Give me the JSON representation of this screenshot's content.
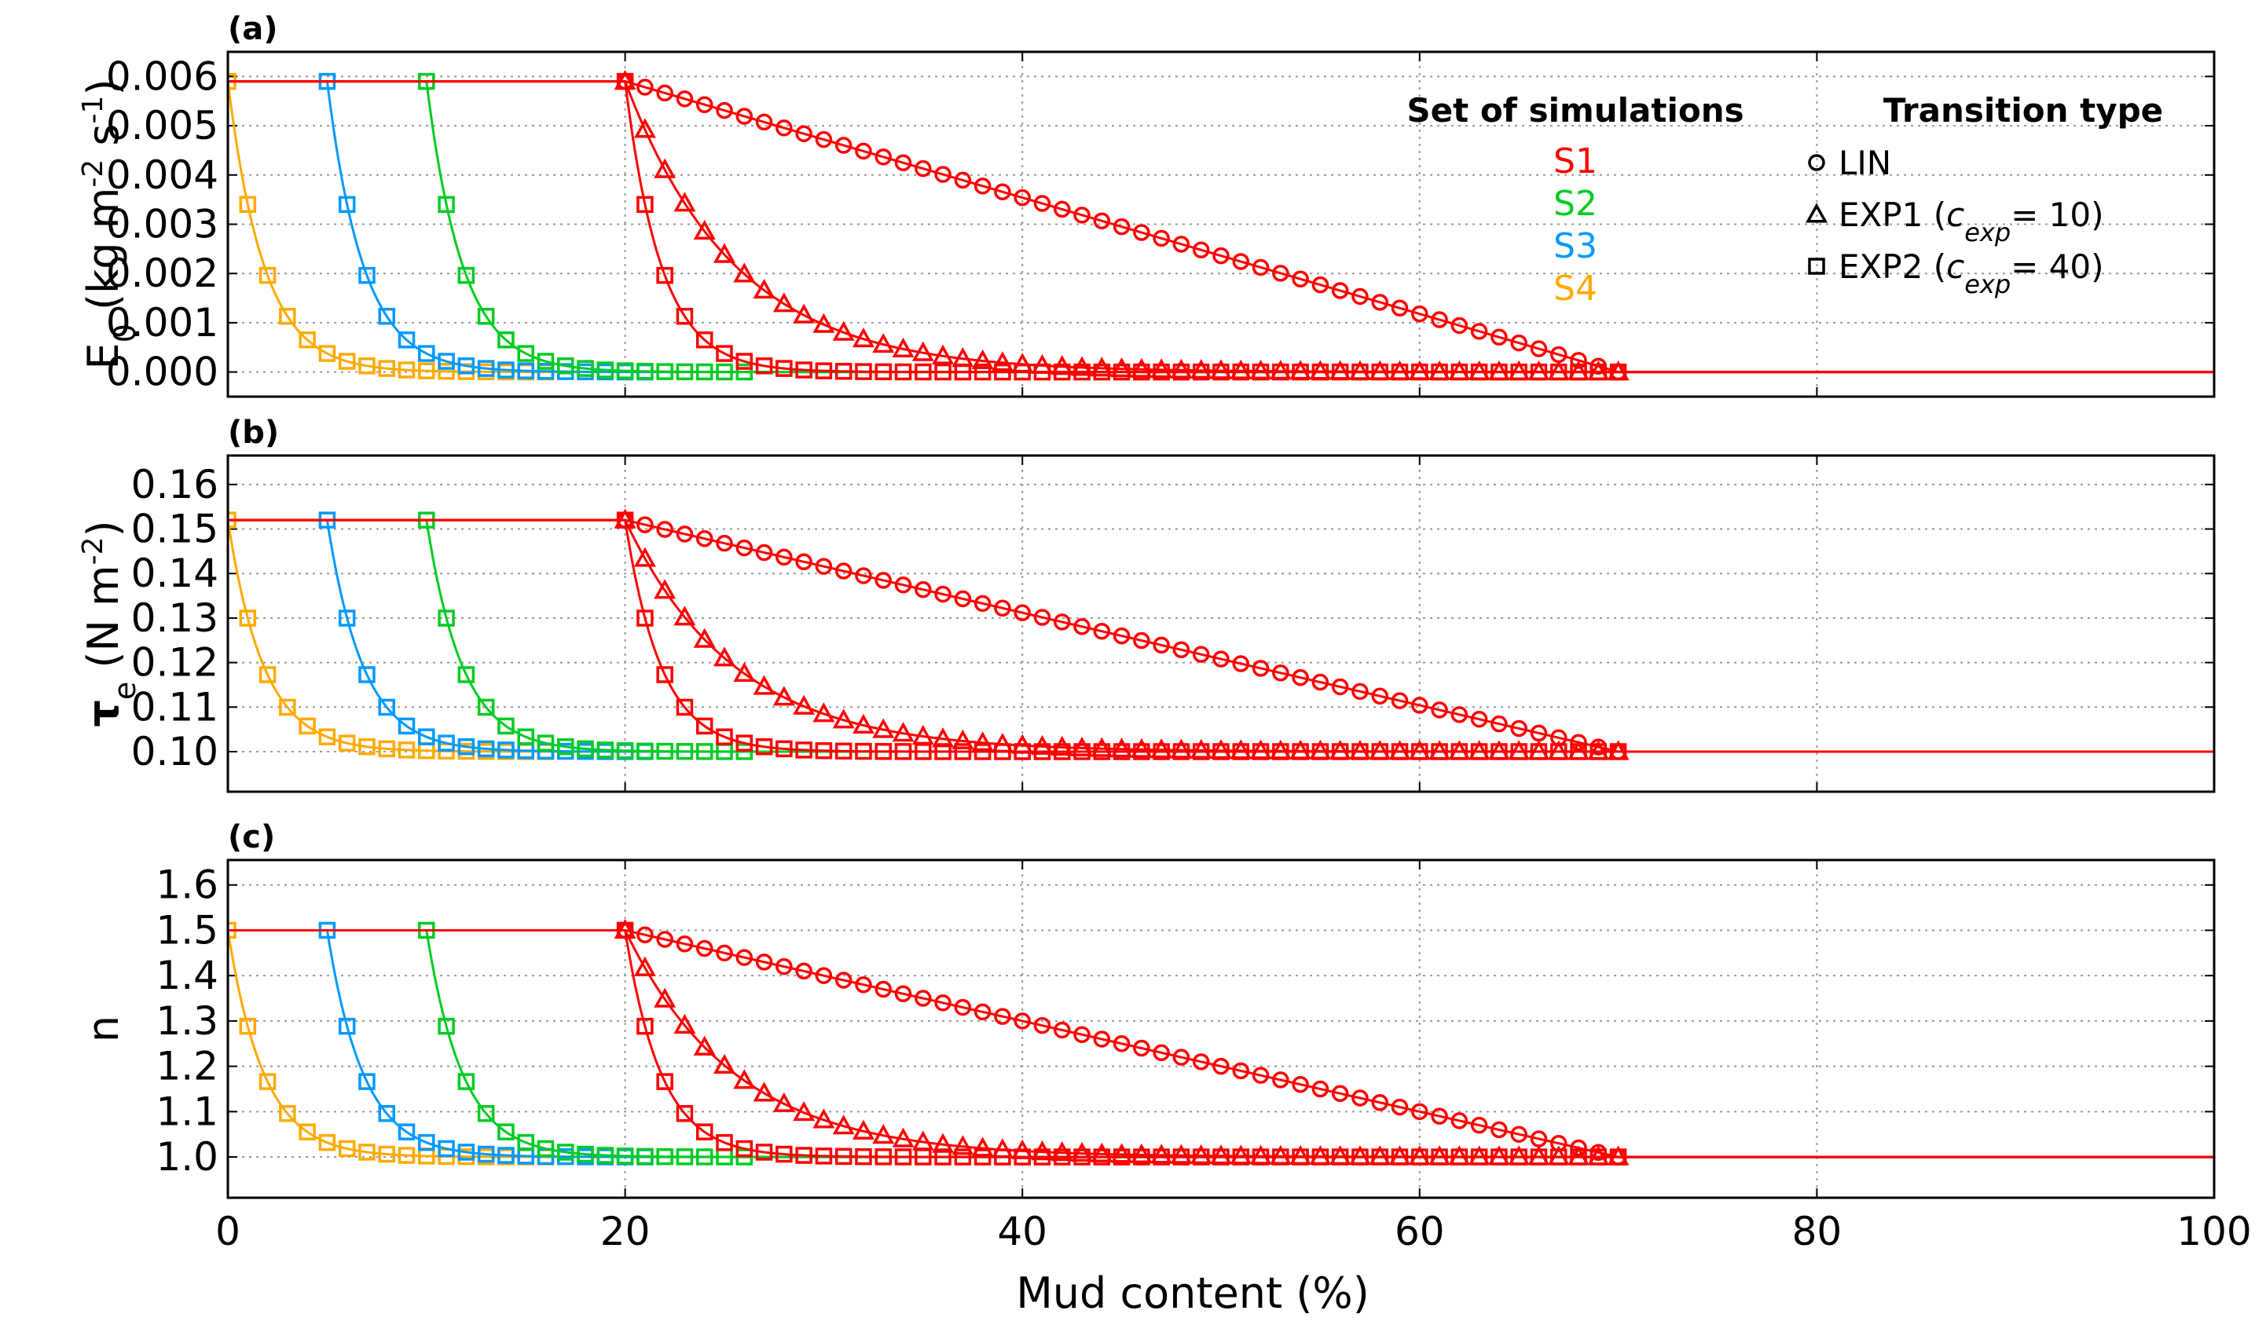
{
  "chart_data": {
    "type": "line",
    "xlabel": "Mud content (%)",
    "xlim": [
      0,
      100
    ],
    "xticks": [
      "0",
      "20",
      "40",
      "60",
      "80",
      "100"
    ],
    "grid": true,
    "legend": {
      "placement": "top-right of panel (a)",
      "series_title": "Set of simulations",
      "series": [
        {
          "name": "S1",
          "color": "#ff0000",
          "threshold": 20
        },
        {
          "name": "S2",
          "color": "#00cc22",
          "threshold": 10
        },
        {
          "name": "S3",
          "color": "#0099ff",
          "threshold": 5
        },
        {
          "name": "S4",
          "color": "#ffaa00",
          "threshold": 0
        }
      ],
      "transition_title": "Transition type",
      "transitions": [
        {
          "marker": "circle",
          "label": "LIN",
          "suffix": ""
        },
        {
          "marker": "triangle",
          "label": "EXP1 (",
          "suffix": "= 10)",
          "c_base": "c",
          "c_sub": "exp"
        },
        {
          "marker": "square",
          "label": "EXP2 (",
          "suffix": "= 40)",
          "c_base": "c",
          "c_sub": "exp"
        }
      ]
    },
    "transition": {
      "upper_mud_content": 70,
      "LIN": "linear decrease from threshold to 70",
      "EXP1_decay_per_percent": 0.18126,
      "EXP2_decay_per_percent": 0.55067
    },
    "panels": [
      {
        "tag": "(a)",
        "ylabel": "E0 (kg m-2 s-1)",
        "ylim": [
          -0.0005,
          0.0065
        ],
        "yticks": [
          "0.000",
          "0.001",
          "0.002",
          "0.003",
          "0.004",
          "0.005",
          "0.006"
        ],
        "sand_value": 0.0059,
        "mud_value": 0.0
      },
      {
        "tag": "(b)",
        "ylabel": "τe (N m-2)",
        "ylim": [
          0.091,
          0.1665
        ],
        "yticks": [
          "0.10",
          "0.11",
          "0.12",
          "0.13",
          "0.14",
          "0.15",
          "0.16"
        ],
        "sand_value": 0.152,
        "mud_value": 0.1
      },
      {
        "tag": "(c)",
        "ylabel": "n",
        "ylim": [
          0.91,
          1.655
        ],
        "yticks": [
          "1.0",
          "1.1",
          "1.2",
          "1.3",
          "1.4",
          "1.5",
          "1.6"
        ],
        "sand_value": 1.5,
        "mud_value": 1.0
      }
    ]
  }
}
